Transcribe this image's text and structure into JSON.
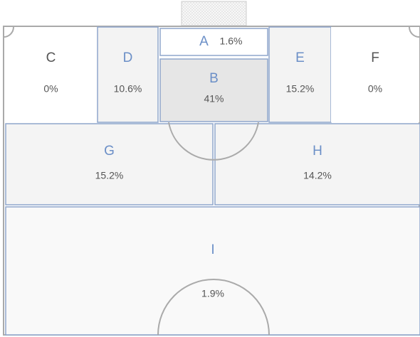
{
  "zones": [
    {
      "label": "A",
      "value": "1.6%"
    },
    {
      "label": "B",
      "value": "41%"
    },
    {
      "label": "C",
      "value": "0%"
    },
    {
      "label": "D",
      "value": "10.6%"
    },
    {
      "label": "E",
      "value": "15.2%"
    },
    {
      "label": "F",
      "value": "0%"
    },
    {
      "label": "G",
      "value": "15.2%"
    },
    {
      "label": "H",
      "value": "14.2%"
    },
    {
      "label": "I",
      "value": "1.9%"
    }
  ]
}
